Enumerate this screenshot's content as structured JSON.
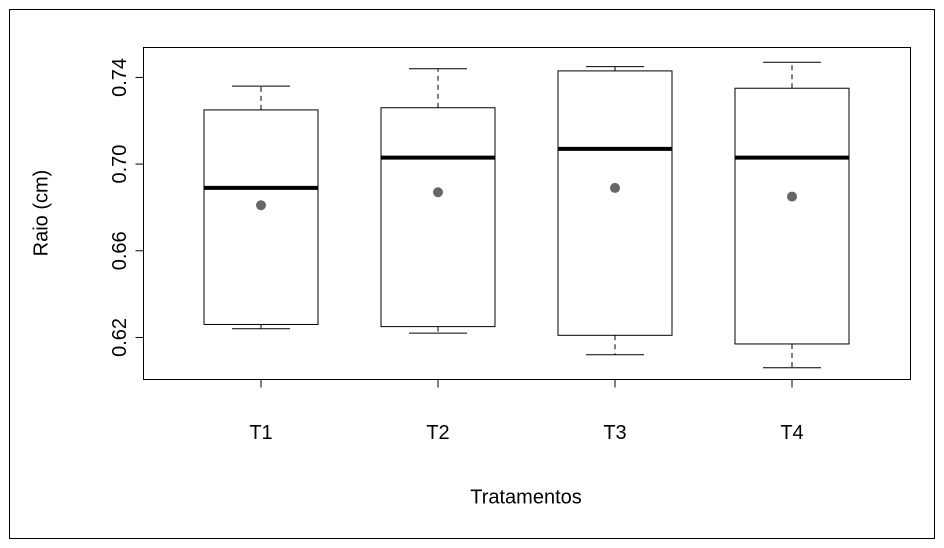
{
  "chart_data": {
    "type": "box",
    "y_label": "Raio (cm)",
    "x_label": "Tratamentos",
    "categories": [
      "T1",
      "T2",
      "T3",
      "T4"
    ],
    "boxes": [
      {
        "min": 0.624,
        "q1": 0.626,
        "median": 0.689,
        "q3": 0.725,
        "max": 0.736,
        "mean": 0.681
      },
      {
        "min": 0.622,
        "q1": 0.625,
        "median": 0.703,
        "q3": 0.726,
        "max": 0.744,
        "mean": 0.687
      },
      {
        "min": 0.612,
        "q1": 0.621,
        "median": 0.707,
        "q3": 0.743,
        "max": 0.745,
        "mean": 0.689
      },
      {
        "min": 0.606,
        "q1": 0.617,
        "median": 0.703,
        "q3": 0.735,
        "max": 0.747,
        "mean": 0.685
      }
    ],
    "box_color": "#ffffff",
    "median_color": "#000000",
    "mean_color": "#666666",
    "ylim": [
      0.6006,
      0.7538
    ],
    "yticks": [
      0.62,
      0.66,
      {
        "value": 0.7,
        "label": "0.70"
      },
      0.74
    ]
  }
}
